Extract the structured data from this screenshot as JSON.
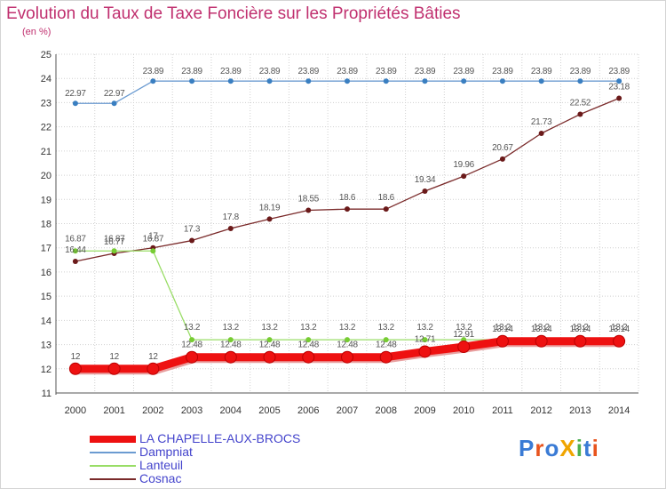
{
  "header": {
    "title": "Evolution du Taux de Taxe Foncière sur les Propriétés Bâties",
    "unit": "(en %)"
  },
  "logo": {
    "text": "ProXiti",
    "colors": [
      "#3a7bd5",
      "#e8541e",
      "#3a7bd5",
      "#f0a500",
      "#4caf50",
      "#3a7bd5",
      "#e8541e"
    ]
  },
  "chart_data": {
    "type": "line",
    "title": "Evolution du Taux de Taxe Foncière sur les Propriétés Bâties",
    "ylabel": "(en %)",
    "xlabel": "",
    "x": [
      2000,
      2001,
      2002,
      2003,
      2004,
      2005,
      2006,
      2007,
      2008,
      2009,
      2010,
      2011,
      2012,
      2013,
      2014
    ],
    "ylim": [
      11,
      25
    ],
    "yticks": [
      11,
      12,
      13,
      14,
      15,
      16,
      17,
      18,
      19,
      20,
      21,
      22,
      23,
      24,
      25
    ],
    "grid": true,
    "legend_position": "bottom-left",
    "series": [
      {
        "name": "LA CHAPELLE-AUX-BROCS",
        "color": "#ee1111",
        "marker": "#ee1111",
        "values": [
          12,
          12,
          12,
          12.48,
          12.48,
          12.48,
          12.48,
          12.48,
          12.48,
          12.71,
          12.91,
          13.14,
          13.14,
          13.14,
          13.14
        ],
        "labels": [
          "12",
          "12",
          "12",
          "12.48",
          "12.48",
          "12.48",
          "12.48",
          "12.48",
          "12.48",
          "12.71",
          "12.91",
          "13.14",
          "13.14",
          "13.14",
          "13.14"
        ]
      },
      {
        "name": "Dampniat",
        "color": "#6b9bd1",
        "marker": "#3a7fc1",
        "values": [
          22.97,
          22.97,
          23.89,
          23.89,
          23.89,
          23.89,
          23.89,
          23.89,
          23.89,
          23.89,
          23.89,
          23.89,
          23.89,
          23.89,
          23.89
        ],
        "labels": [
          "22.97",
          "22.97",
          "23.89",
          "23.89",
          "23.89",
          "23.89",
          "23.89",
          "23.89",
          "23.89",
          "23.89",
          "23.89",
          "23.89",
          "23.89",
          "23.89",
          "23.89"
        ]
      },
      {
        "name": "Lanteuil",
        "color": "#99dd66",
        "marker": "#77cc33",
        "values": [
          16.87,
          16.87,
          16.87,
          13.2,
          13.2,
          13.2,
          13.2,
          13.2,
          13.2,
          13.2,
          13.2,
          13.2,
          13.2,
          13.2,
          13.2
        ],
        "labels": [
          "16.87",
          "16.87",
          "16.87",
          "13.2",
          "13.2",
          "13.2",
          "13.2",
          "13.2",
          "13.2",
          "13.2",
          "13.2",
          "13.2",
          "13.2",
          "13.2",
          "13.2"
        ]
      },
      {
        "name": "Cosnac",
        "color": "#7a2a2a",
        "marker": "#6b1a1a",
        "values": [
          16.44,
          16.77,
          17,
          17.3,
          17.8,
          18.19,
          18.55,
          18.6,
          18.6,
          19.34,
          19.96,
          20.67,
          21.73,
          22.52,
          23.18
        ],
        "labels": [
          "16.44",
          "16.77",
          "17",
          "17.3",
          "17.8",
          "18.19",
          "18.55",
          "18.6",
          "18.6",
          "19.34",
          "19.96",
          "20.67",
          "21.73",
          "22.52",
          "23.18"
        ]
      }
    ]
  }
}
